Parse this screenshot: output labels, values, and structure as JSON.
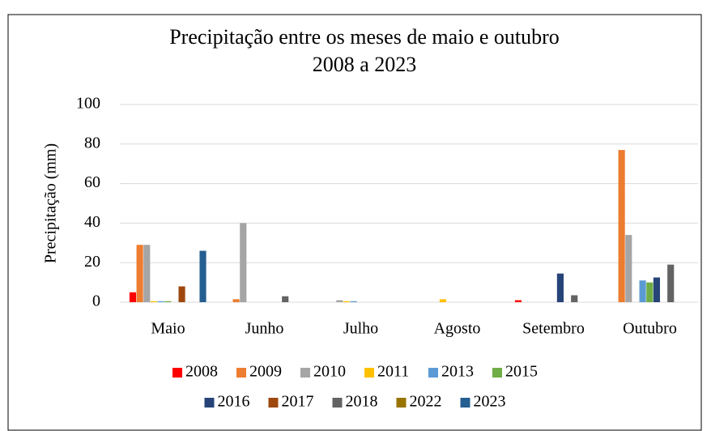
{
  "chart_data": {
    "type": "bar",
    "title": "Precipitação entre os meses de maio e outubro",
    "subtitle": "2008 a 2023",
    "y_label": "Precipitação (mm)",
    "categories": [
      "Maio",
      "Junho",
      "Julho",
      "Agosto",
      "Setembro",
      "Outubro"
    ],
    "series": [
      {
        "name": "2008",
        "color": "#ff0000",
        "values": [
          5,
          0,
          0,
          0,
          1,
          0
        ]
      },
      {
        "name": "2009",
        "color": "#ed7d31",
        "values": [
          29,
          1.5,
          0,
          0,
          0,
          77
        ]
      },
      {
        "name": "2010",
        "color": "#a5a5a5",
        "values": [
          29,
          40,
          1,
          0,
          0,
          34
        ]
      },
      {
        "name": "2011",
        "color": "#ffc000",
        "values": [
          0.5,
          0,
          0.5,
          1.5,
          0,
          0
        ]
      },
      {
        "name": "2013",
        "color": "#5b9bd5",
        "values": [
          0.5,
          0,
          0.5,
          0,
          0,
          11
        ]
      },
      {
        "name": "2015",
        "color": "#70ad47",
        "values": [
          0.5,
          0,
          0,
          0,
          0,
          10
        ]
      },
      {
        "name": "2016",
        "color": "#264478",
        "values": [
          0,
          0,
          0,
          0,
          14.5,
          12.5
        ]
      },
      {
        "name": "2017",
        "color": "#9e480e",
        "values": [
          8,
          0,
          0,
          0,
          0,
          0
        ]
      },
      {
        "name": "2018",
        "color": "#636363",
        "values": [
          0,
          3,
          0,
          0,
          3.5,
          19
        ]
      },
      {
        "name": "2022",
        "color": "#997300",
        "values": [
          0,
          0,
          0,
          0,
          0,
          0
        ]
      },
      {
        "name": "2023",
        "color": "#255e91",
        "values": [
          26,
          0,
          0,
          0,
          0,
          0
        ]
      }
    ],
    "ylim": [
      0,
      100
    ],
    "yticks": [
      0,
      20,
      40,
      60,
      80,
      100
    ],
    "grid": true,
    "legend": "bottom"
  }
}
